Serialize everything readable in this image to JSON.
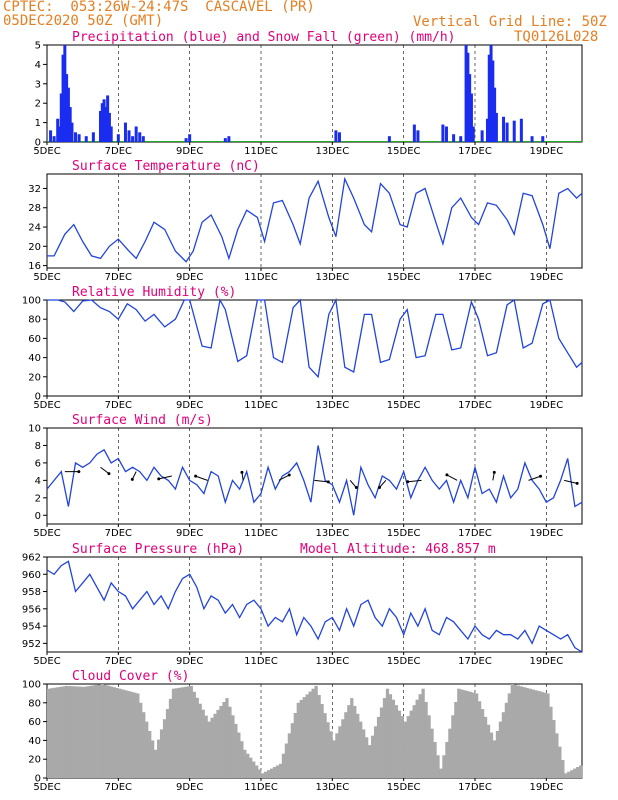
{
  "header": {
    "line1": "CPTEC:  053:26W-24:47S  CASCAVEL (PR)",
    "line2": "05DEC2020 50Z (GMT)",
    "grid_note": "Vertical Grid Line: 50Z",
    "code": "TQ0126L028"
  },
  "colors": {
    "header": "#e67e22",
    "title": "#e0007a",
    "line": "#2244dd",
    "precip": "#1a2cf0",
    "snow": "#22aa22",
    "cloud": "#a9a9a9"
  },
  "x_ticks": [
    "5DEC",
    "7DEC",
    "9DEC",
    "11DEC",
    "13DEC",
    "15DEC",
    "17DEC",
    "19DEC"
  ],
  "x_range_days": [
    0,
    15
  ],
  "chart_data": [
    {
      "type": "bar",
      "title": "Precipitation (blue) and Snow Fall (green) (mm/h)",
      "ylim": [
        0,
        5
      ],
      "yticks": [
        0,
        1,
        2,
        3,
        4,
        5
      ],
      "series": [
        {
          "name": "Precipitation",
          "color": "blue",
          "x": [
            0.1,
            0.2,
            0.3,
            0.35,
            0.4,
            0.45,
            0.5,
            0.55,
            0.6,
            0.65,
            0.7,
            0.8,
            0.9,
            1.1,
            1.3,
            1.5,
            1.55,
            1.6,
            1.65,
            1.7,
            1.75,
            1.8,
            2.0,
            2.2,
            2.3,
            2.4,
            2.5,
            2.6,
            2.7,
            3.9,
            4.0,
            5.0,
            5.1,
            8.1,
            8.2,
            9.6,
            10.3,
            10.4,
            11.1,
            11.2,
            11.4,
            11.6,
            11.75,
            11.8,
            11.85,
            11.9,
            11.95,
            12.2,
            12.35,
            12.4,
            12.45,
            12.5,
            12.55,
            12.6,
            12.8,
            12.9,
            13.1,
            13.3,
            13.6,
            13.9
          ],
          "values": [
            0.6,
            0.3,
            1.2,
            0.8,
            2.5,
            4.5,
            5.0,
            3.5,
            2.8,
            1.8,
            1.0,
            0.5,
            0.4,
            0.3,
            0.5,
            1.6,
            2.0,
            2.2,
            1.8,
            2.4,
            1.5,
            0.8,
            0.4,
            1.0,
            0.6,
            0.3,
            0.8,
            0.5,
            0.3,
            0.2,
            0.4,
            0.2,
            0.3,
            0.6,
            0.5,
            0.3,
            0.9,
            0.6,
            0.9,
            0.8,
            0.4,
            0.3,
            5.0,
            4.6,
            3.5,
            2.5,
            0.8,
            0.6,
            1.2,
            4.5,
            5.0,
            4.2,
            2.8,
            1.5,
            1.3,
            1.0,
            1.1,
            1.2,
            0.3,
            0.3
          ]
        },
        {
          "name": "Snow Fall",
          "color": "green",
          "x": [],
          "values": []
        }
      ]
    },
    {
      "type": "line",
      "title": "Surface Temperature (nC)",
      "ylim": [
        15.5,
        35
      ],
      "yticks": [
        16,
        20,
        24,
        28,
        32
      ],
      "x": [
        0,
        0.2,
        0.5,
        0.75,
        1.0,
        1.25,
        1.5,
        1.75,
        2.0,
        2.3,
        2.5,
        2.75,
        3.0,
        3.3,
        3.6,
        3.9,
        4.1,
        4.35,
        4.6,
        4.9,
        5.1,
        5.35,
        5.6,
        5.9,
        6.1,
        6.35,
        6.6,
        6.9,
        7.1,
        7.35,
        7.6,
        7.9,
        8.1,
        8.35,
        8.6,
        8.9,
        9.1,
        9.35,
        9.6,
        9.9,
        10.1,
        10.35,
        10.6,
        10.9,
        11.1,
        11.35,
        11.6,
        11.9,
        12.1,
        12.35,
        12.6,
        12.9,
        13.1,
        13.35,
        13.6,
        13.9,
        14.1,
        14.35,
        14.6,
        14.85,
        15.0
      ],
      "values": [
        18,
        18,
        22.5,
        24.5,
        21,
        18,
        17.5,
        20,
        21.5,
        19,
        17.5,
        21,
        25,
        23.5,
        19,
        16.8,
        19,
        25,
        26.5,
        22,
        17.5,
        23.5,
        27.5,
        26,
        21,
        29,
        29.5,
        24.5,
        20.5,
        30,
        33.5,
        26,
        22,
        34,
        30,
        24.5,
        23,
        33,
        31,
        24.5,
        24,
        31,
        32,
        25,
        20.5,
        28,
        30,
        26,
        24.5,
        29,
        28.5,
        25.5,
        22.5,
        31,
        30.5,
        24.5,
        19.5,
        31,
        32,
        30,
        31
      ]
    },
    {
      "type": "line",
      "title": "Relative Humidity (%)",
      "ylim": [
        0,
        100
      ],
      "yticks": [
        0,
        20,
        40,
        60,
        80,
        100
      ],
      "x": [
        0,
        0.3,
        0.5,
        0.75,
        1.0,
        1.25,
        1.5,
        1.75,
        2.0,
        2.25,
        2.5,
        2.75,
        3.0,
        3.3,
        3.6,
        3.85,
        4.0,
        4.35,
        4.6,
        4.85,
        5.0,
        5.35,
        5.6,
        5.9,
        6.1,
        6.35,
        6.6,
        6.9,
        7.1,
        7.35,
        7.6,
        7.9,
        8.1,
        8.35,
        8.6,
        8.9,
        9.1,
        9.35,
        9.6,
        9.9,
        10.1,
        10.35,
        10.6,
        10.9,
        11.1,
        11.35,
        11.6,
        11.9,
        12.1,
        12.35,
        12.6,
        12.9,
        13.1,
        13.35,
        13.6,
        13.9,
        14.1,
        14.35,
        14.6,
        14.85,
        15.0
      ],
      "values": [
        100,
        100,
        98,
        88,
        99,
        100,
        92,
        88,
        80,
        96,
        90,
        78,
        85,
        72,
        80,
        100,
        100,
        52,
        50,
        100,
        90,
        36,
        42,
        100,
        100,
        40,
        35,
        92,
        100,
        30,
        20,
        85,
        100,
        30,
        25,
        85,
        85,
        35,
        38,
        80,
        90,
        40,
        42,
        85,
        85,
        48,
        50,
        98,
        80,
        42,
        45,
        95,
        100,
        50,
        55,
        96,
        100,
        60,
        45,
        30,
        35
      ]
    },
    {
      "type": "line",
      "title": "Surface Wind (m/s)",
      "ylim": [
        -1,
        10
      ],
      "yticks": [
        0,
        2,
        4,
        6,
        8,
        10
      ],
      "x": [
        0,
        0.2,
        0.4,
        0.6,
        0.8,
        1.0,
        1.2,
        1.4,
        1.6,
        1.8,
        2.0,
        2.2,
        2.4,
        2.6,
        2.8,
        3.0,
        3.2,
        3.4,
        3.6,
        3.8,
        4.0,
        4.2,
        4.4,
        4.6,
        4.8,
        5.0,
        5.2,
        5.4,
        5.6,
        5.8,
        6.0,
        6.2,
        6.4,
        6.6,
        6.8,
        7.0,
        7.2,
        7.4,
        7.6,
        7.8,
        8.0,
        8.2,
        8.4,
        8.6,
        8.8,
        9.0,
        9.2,
        9.4,
        9.6,
        9.8,
        10.0,
        10.2,
        10.4,
        10.6,
        10.8,
        11.0,
        11.2,
        11.4,
        11.6,
        11.8,
        12.0,
        12.2,
        12.4,
        12.6,
        12.8,
        13.0,
        13.2,
        13.4,
        13.6,
        13.8,
        14.0,
        14.2,
        14.4,
        14.6,
        14.8,
        15.0
      ],
      "values": [
        3,
        4,
        5,
        1,
        6,
        5.5,
        6,
        7,
        7.5,
        6,
        6.5,
        5,
        5.5,
        5,
        4,
        5.5,
        4.5,
        4,
        3,
        5.5,
        4,
        3.5,
        2.5,
        5,
        4.5,
        1.5,
        4,
        3,
        5,
        1.5,
        2.5,
        5.5,
        3,
        4.5,
        5,
        6,
        4,
        1.5,
        8,
        4,
        3.5,
        1.5,
        4,
        0,
        5.5,
        3.5,
        2,
        4.5,
        4,
        3,
        5,
        2,
        4,
        5.5,
        4,
        3,
        4,
        1.5,
        4,
        2,
        5.5,
        2.5,
        3,
        1.5,
        4.5,
        2,
        3,
        6,
        4,
        3,
        1.5,
        2,
        4,
        6.5,
        1,
        1.5
      ]
    },
    {
      "type": "line",
      "title": "Surface Pressure (hPa)",
      "subtitle": "Model Altitude: 468.857  m",
      "ylim": [
        951,
        962
      ],
      "yticks": [
        952,
        954,
        956,
        958,
        960,
        962
      ],
      "x": [
        0,
        0.2,
        0.4,
        0.6,
        0.8,
        1.0,
        1.2,
        1.4,
        1.6,
        1.8,
        2.0,
        2.2,
        2.4,
        2.6,
        2.8,
        3.0,
        3.2,
        3.4,
        3.6,
        3.8,
        4.0,
        4.2,
        4.4,
        4.6,
        4.8,
        5.0,
        5.2,
        5.4,
        5.6,
        5.8,
        6.0,
        6.2,
        6.4,
        6.6,
        6.8,
        7.0,
        7.2,
        7.4,
        7.6,
        7.8,
        8.0,
        8.2,
        8.4,
        8.6,
        8.8,
        9.0,
        9.2,
        9.4,
        9.6,
        9.8,
        10.0,
        10.2,
        10.4,
        10.6,
        10.8,
        11.0,
        11.2,
        11.4,
        11.6,
        11.8,
        12.0,
        12.2,
        12.4,
        12.6,
        12.8,
        13.0,
        13.2,
        13.4,
        13.6,
        13.8,
        14.0,
        14.2,
        14.4,
        14.6,
        14.8,
        15.0
      ],
      "values": [
        960.5,
        960,
        961,
        961.5,
        958,
        959,
        960,
        958.5,
        957,
        959,
        958,
        957.5,
        956,
        957,
        958,
        956.5,
        957.5,
        956,
        958,
        959.5,
        960,
        958.5,
        956,
        957.5,
        957,
        955.5,
        956.5,
        955,
        956.5,
        957,
        956,
        954,
        955,
        954.5,
        956,
        953,
        955,
        954,
        952.5,
        954.5,
        955,
        953.5,
        956,
        954,
        956.5,
        957,
        955,
        954,
        956,
        955,
        953,
        955.5,
        954,
        956,
        953.5,
        953,
        955,
        954.5,
        953.5,
        952.5,
        954,
        953,
        952.5,
        953.5,
        953,
        953,
        952.5,
        953.5,
        952,
        954,
        953.5,
        953,
        952.5,
        953,
        951.5,
        951
      ]
    },
    {
      "type": "area",
      "title": "Cloud Cover (%)",
      "ylim": [
        0,
        100
      ],
      "yticks": [
        0,
        20,
        40,
        60,
        80,
        100
      ],
      "x": [
        0,
        0.5,
        1.0,
        1.5,
        2.0,
        2.5,
        3.0,
        3.5,
        4.0,
        4.5,
        5.0,
        5.5,
        6.0,
        6.5,
        7.0,
        7.5,
        8.0,
        8.5,
        9.0,
        9.5,
        10.0,
        10.5,
        11.0,
        11.5,
        12.0,
        12.5,
        13.0,
        13.5,
        14.0,
        14.5,
        15.0
      ],
      "values": [
        95,
        98,
        97,
        100,
        95,
        90,
        30,
        95,
        98,
        60,
        85,
        30,
        5,
        15,
        80,
        98,
        40,
        85,
        35,
        95,
        60,
        95,
        10,
        95,
        90,
        40,
        100,
        95,
        90,
        5,
        15
      ]
    }
  ]
}
